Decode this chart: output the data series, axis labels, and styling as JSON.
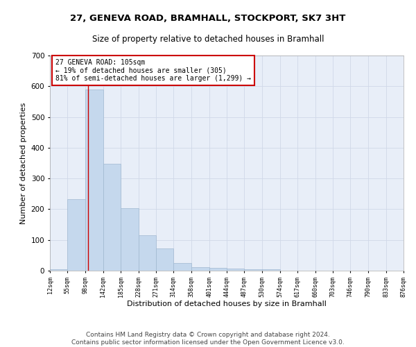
{
  "title_line1": "27, GENEVA ROAD, BRAMHALL, STOCKPORT, SK7 3HT",
  "title_line2": "Size of property relative to detached houses in Bramhall",
  "xlabel": "Distribution of detached houses by size in Bramhall",
  "ylabel": "Number of detached properties",
  "bar_edges": [
    12,
    55,
    98,
    142,
    185,
    228,
    271,
    314,
    358,
    401,
    444,
    487,
    530,
    574,
    617,
    660,
    703,
    746,
    790,
    833,
    876
  ],
  "bar_heights": [
    5,
    233,
    590,
    347,
    203,
    115,
    72,
    25,
    12,
    8,
    6,
    5,
    4,
    0,
    0,
    0,
    0,
    0,
    0,
    0
  ],
  "bar_color": "#c5d8ed",
  "bar_edge_color": "#a0b8d0",
  "property_sqm": 105,
  "annotation_text": "27 GENEVA ROAD: 105sqm\n← 19% of detached houses are smaller (305)\n81% of semi-detached houses are larger (1,299) →",
  "annotation_box_color": "#ffffff",
  "annotation_box_edge_color": "#cc0000",
  "vline_color": "#cc0000",
  "ylim": [
    0,
    700
  ],
  "yticks": [
    0,
    100,
    200,
    300,
    400,
    500,
    600,
    700
  ],
  "tick_labels": [
    "12sqm",
    "55sqm",
    "98sqm",
    "142sqm",
    "185sqm",
    "228sqm",
    "271sqm",
    "314sqm",
    "358sqm",
    "401sqm",
    "444sqm",
    "487sqm",
    "530sqm",
    "574sqm",
    "617sqm",
    "660sqm",
    "703sqm",
    "746sqm",
    "790sqm",
    "833sqm",
    "876sqm"
  ],
  "footnote": "Contains HM Land Registry data © Crown copyright and database right 2024.\nContains public sector information licensed under the Open Government Licence v3.0.",
  "bg_color": "#ffffff",
  "grid_color": "#d0d8e8",
  "title1_fontsize": 9.5,
  "title2_fontsize": 8.5,
  "xlabel_fontsize": 8,
  "ylabel_fontsize": 8,
  "footnote_fontsize": 6.5,
  "annot_fontsize": 7
}
